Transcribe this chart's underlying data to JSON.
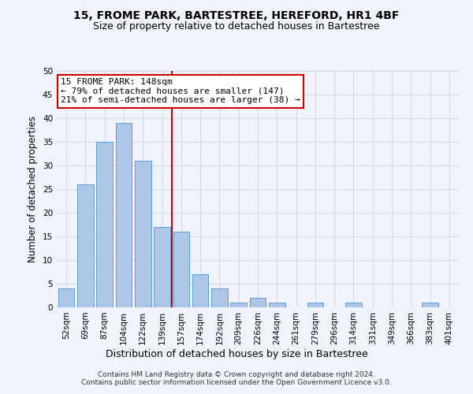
{
  "title": "15, FROME PARK, BARTESTREE, HEREFORD, HR1 4BF",
  "subtitle": "Size of property relative to detached houses in Bartestree",
  "xlabel": "Distribution of detached houses by size in Bartestree",
  "ylabel": "Number of detached properties",
  "bar_labels": [
    "52sqm",
    "69sqm",
    "87sqm",
    "104sqm",
    "122sqm",
    "139sqm",
    "157sqm",
    "174sqm",
    "192sqm",
    "209sqm",
    "226sqm",
    "244sqm",
    "261sqm",
    "279sqm",
    "296sqm",
    "314sqm",
    "331sqm",
    "349sqm",
    "366sqm",
    "383sqm",
    "401sqm"
  ],
  "bar_heights": [
    4,
    26,
    35,
    39,
    31,
    17,
    16,
    7,
    4,
    1,
    2,
    1,
    0,
    1,
    0,
    1,
    0,
    0,
    0,
    1,
    0
  ],
  "bar_color": "#aec6e8",
  "bar_edge_color": "#5a9fd4",
  "vline_x_index": 6,
  "vline_color": "#cc0000",
  "annotation_text": "15 FROME PARK: 148sqm\n← 79% of detached houses are smaller (147)\n21% of semi-detached houses are larger (38) →",
  "annotation_box_color": "#ffffff",
  "annotation_box_edge_color": "#cc0000",
  "ylim": [
    0,
    50
  ],
  "yticks": [
    0,
    5,
    10,
    15,
    20,
    25,
    30,
    35,
    40,
    45,
    50
  ],
  "grid_color": "#d0d8e8",
  "background_color": "#f0f4fa",
  "footer_text": "Contains HM Land Registry data © Crown copyright and database right 2024.\nContains public sector information licensed under the Open Government Licence v3.0.",
  "title_fontsize": 10,
  "subtitle_fontsize": 9,
  "xlabel_fontsize": 9,
  "ylabel_fontsize": 8.5,
  "tick_fontsize": 7.5,
  "annotation_fontsize": 8,
  "footer_fontsize": 6.5
}
